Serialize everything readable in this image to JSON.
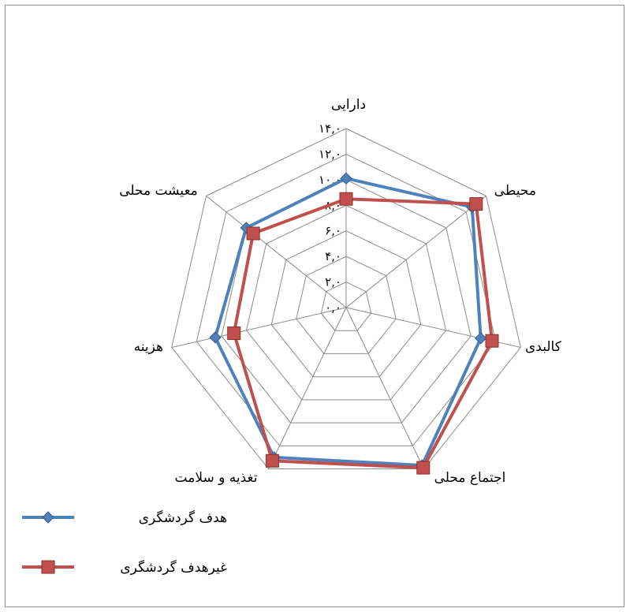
{
  "chart_data": {
    "type": "radar",
    "categories": [
      "دارایی",
      "محیطی",
      "کالبدی",
      "اجتماع محلی",
      "تغذیه و سلامت",
      "هزینه",
      "معیشت محلی"
    ],
    "ticks": [
      "۰,۰",
      "۲,۰",
      "۴,۰",
      "۶,۰",
      "۸,۰",
      "۱۰,۰",
      "۱۲,۰",
      "۱۴,۰"
    ],
    "rmax": 14,
    "series": [
      {
        "name": "هدف گردشگری",
        "values": [
          10.1,
          12.6,
          10.8,
          13.7,
          13.0,
          10.5,
          10.0
        ],
        "color": "#4f81bd",
        "marker": "diamond"
      },
      {
        "name": "غیرهدف گردشگری",
        "values": [
          8.5,
          13.0,
          11.7,
          13.9,
          13.3,
          9.0,
          9.3
        ],
        "color": "#c0504d",
        "marker": "square"
      }
    ],
    "grid": true,
    "legend": "bottom-left"
  }
}
